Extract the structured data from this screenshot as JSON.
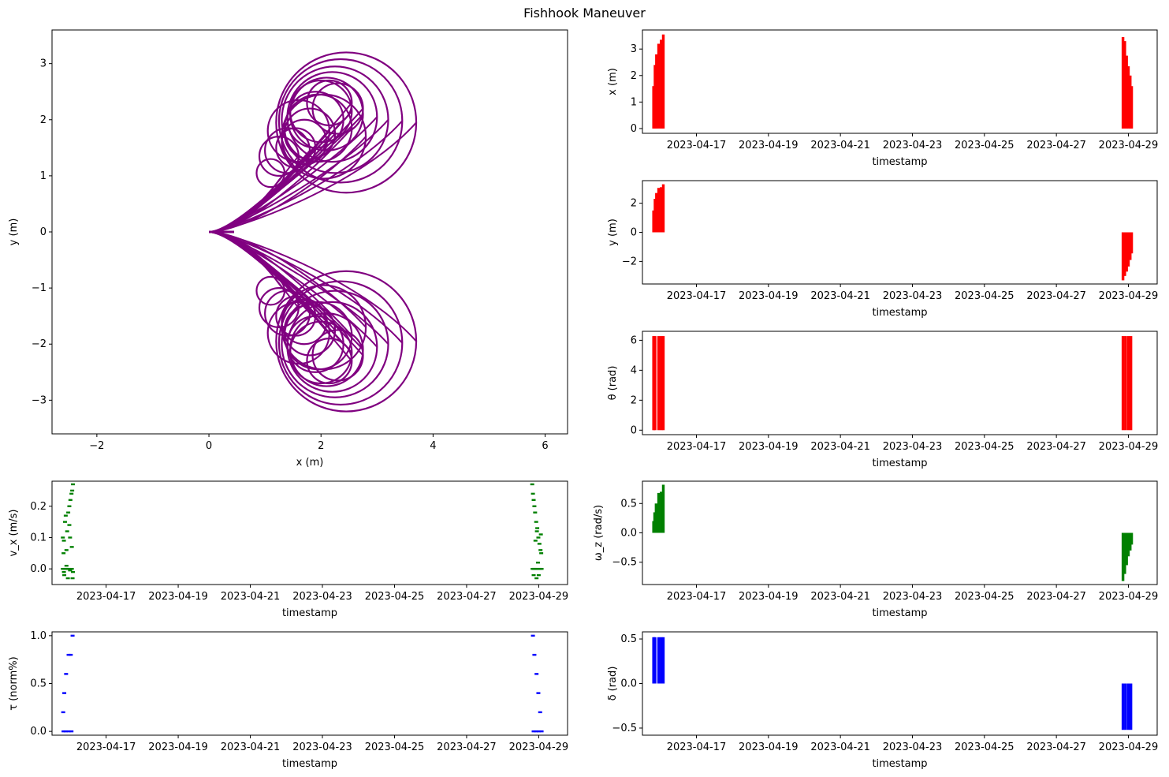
{
  "title": "Fishhook Maneuver",
  "colors": {
    "trajectory": "#800080",
    "pose": "#ff0000",
    "velocity": "#008000",
    "input": "#0000ff"
  },
  "date_ticks": [
    "2023-04-17",
    "2023-04-19",
    "2023-04-21",
    "2023-04-23",
    "2023-04-25",
    "2023-04-27",
    "2023-04-29"
  ],
  "chart_data": [
    {
      "id": "trajectory",
      "type": "line",
      "title": "",
      "xlabel": "x (m)",
      "ylabel": "y (m)",
      "xlim": [
        -2.8,
        6.4
      ],
      "ylim": [
        -3.6,
        3.6
      ],
      "xticks": [
        -2,
        0,
        2,
        4,
        6
      ],
      "xtick_labels": [
        "−2",
        "0",
        "2",
        "4",
        "6"
      ],
      "yticks": [
        -3,
        -2,
        -1,
        0,
        1,
        2,
        3
      ],
      "ytick_labels": [
        "−3",
        "−2",
        "−1",
        "0",
        "1",
        "2",
        "3"
      ],
      "color": "purple",
      "series": [
        {
          "name": "upper-loops",
          "loops": [
            {
              "cx": 2.25,
              "cy": 2.0,
              "r": 0.95
            },
            {
              "cx": 2.35,
              "cy": 1.98,
              "r": 1.1
            },
            {
              "cx": 2.45,
              "cy": 1.95,
              "r": 1.25
            },
            {
              "cx": 2.2,
              "cy": 2.05,
              "r": 0.8
            },
            {
              "cx": 2.1,
              "cy": 2.1,
              "r": 0.65
            },
            {
              "cx": 2.0,
              "cy": 2.15,
              "r": 0.55
            },
            {
              "cx": 1.9,
              "cy": 2.0,
              "r": 0.5
            },
            {
              "cx": 1.8,
              "cy": 1.75,
              "r": 0.45
            },
            {
              "cx": 1.7,
              "cy": 1.6,
              "r": 0.4
            },
            {
              "cx": 1.55,
              "cy": 1.5,
              "r": 0.35
            },
            {
              "cx": 1.4,
              "cy": 1.45,
              "r": 0.4
            },
            {
              "cx": 1.25,
              "cy": 1.35,
              "r": 0.35
            },
            {
              "cx": 1.1,
              "cy": 1.05,
              "r": 0.25
            },
            {
              "cx": 2.3,
              "cy": 2.2,
              "r": 0.45
            },
            {
              "cx": 2.15,
              "cy": 2.3,
              "r": 0.4
            },
            {
              "cx": 1.95,
              "cy": 1.85,
              "r": 0.6
            },
            {
              "cx": 1.6,
              "cy": 1.8,
              "r": 0.55
            },
            {
              "cx": 2.05,
              "cy": 1.7,
              "r": 0.75
            }
          ]
        },
        {
          "name": "lower-loops",
          "mirror_of": "upper-loops"
        }
      ]
    },
    {
      "id": "x",
      "type": "bar",
      "xlabel": "timestamp",
      "ylabel": "x (m)",
      "ylim": [
        -0.18,
        3.72
      ],
      "yticks": [
        0,
        1,
        2,
        3
      ],
      "ytick_labels": [
        "0",
        "1",
        "2",
        "3"
      ],
      "xlim_days": [
        15.5,
        29.8
      ],
      "color": "red",
      "bars": [
        {
          "day": 15.81,
          "value": 1.6
        },
        {
          "day": 15.85,
          "value": 2.4
        },
        {
          "day": 15.89,
          "value": 2.8
        },
        {
          "day": 15.95,
          "value": 3.2
        },
        {
          "day": 16.02,
          "value": 3.35
        },
        {
          "day": 16.08,
          "value": 3.55
        },
        {
          "day": 28.85,
          "value": 3.45
        },
        {
          "day": 28.9,
          "value": 3.3
        },
        {
          "day": 28.95,
          "value": 2.75
        },
        {
          "day": 29.0,
          "value": 2.35
        },
        {
          "day": 29.05,
          "value": 2.0
        },
        {
          "day": 29.09,
          "value": 1.6
        }
      ]
    },
    {
      "id": "y",
      "type": "bar",
      "xlabel": "timestamp",
      "ylabel": "y (m)",
      "ylim": [
        -3.55,
        3.55
      ],
      "yticks": [
        -2,
        0,
        2
      ],
      "ytick_labels": [
        "−2",
        "0",
        "2"
      ],
      "xlim_days": [
        15.5,
        29.8
      ],
      "color": "red",
      "bars": [
        {
          "day": 15.81,
          "value": 1.5
        },
        {
          "day": 15.85,
          "value": 2.3
        },
        {
          "day": 15.89,
          "value": 2.7
        },
        {
          "day": 15.95,
          "value": 3.05
        },
        {
          "day": 16.02,
          "value": 3.1
        },
        {
          "day": 16.08,
          "value": 3.3
        },
        {
          "day": 28.85,
          "value": -3.3
        },
        {
          "day": 28.9,
          "value": -3.0
        },
        {
          "day": 28.95,
          "value": -2.7
        },
        {
          "day": 29.0,
          "value": -2.35
        },
        {
          "day": 29.05,
          "value": -1.9
        },
        {
          "day": 29.09,
          "value": -1.45
        }
      ]
    },
    {
      "id": "theta",
      "type": "bar",
      "xlabel": "timestamp",
      "ylabel": "θ (rad)",
      "ylim": [
        -0.3,
        6.6
      ],
      "yticks": [
        0,
        2,
        4,
        6
      ],
      "ytick_labels": [
        "0",
        "2",
        "4",
        "6"
      ],
      "xlim_days": [
        15.5,
        29.8
      ],
      "color": "red",
      "bars": [
        {
          "day": 15.81,
          "value": 6.28
        },
        {
          "day": 15.85,
          "value": 6.28
        },
        {
          "day": 15.95,
          "value": 6.28
        },
        {
          "day": 16.02,
          "value": 6.28
        },
        {
          "day": 16.08,
          "value": 6.28
        },
        {
          "day": 28.85,
          "value": 6.28
        },
        {
          "day": 28.92,
          "value": 6.28
        },
        {
          "day": 29.0,
          "value": 6.28
        },
        {
          "day": 29.07,
          "value": 6.28
        }
      ]
    },
    {
      "id": "vx",
      "type": "scatter",
      "xlabel": "timestamp",
      "ylabel": "v_x (m/s)",
      "ylim": [
        -0.05,
        0.28
      ],
      "yticks": [
        0,
        0.1,
        0.2
      ],
      "ytick_labels": [
        "0.0",
        "0.1",
        "0.2"
      ],
      "xlim_days": [
        15.5,
        29.8
      ],
      "color": "green",
      "points": [
        {
          "day": 15.8,
          "value": 0.0
        },
        {
          "day": 15.83,
          "value": -0.01
        },
        {
          "day": 15.87,
          "value": 0.0
        },
        {
          "day": 15.92,
          "value": 0.0
        },
        {
          "day": 15.96,
          "value": 0.0
        },
        {
          "day": 16.0,
          "value": -0.005
        },
        {
          "day": 16.05,
          "value": 0.0
        },
        {
          "day": 16.08,
          "value": -0.01
        },
        {
          "day": 15.82,
          "value": 0.05
        },
        {
          "day": 15.8,
          "value": 0.1
        },
        {
          "day": 15.83,
          "value": 0.09
        },
        {
          "day": 15.86,
          "value": 0.15
        },
        {
          "day": 15.88,
          "value": 0.17
        },
        {
          "day": 15.92,
          "value": 0.12
        },
        {
          "day": 15.95,
          "value": 0.18
        },
        {
          "day": 15.98,
          "value": 0.2
        },
        {
          "day": 16.01,
          "value": 0.22
        },
        {
          "day": 16.04,
          "value": 0.24
        },
        {
          "day": 16.08,
          "value": 0.27
        },
        {
          "day": 16.06,
          "value": 0.25
        },
        {
          "day": 15.9,
          "value": 0.06
        },
        {
          "day": 16.0,
          "value": 0.1
        },
        {
          "day": 16.05,
          "value": 0.07
        },
        {
          "day": 15.98,
          "value": 0.14
        },
        {
          "day": 15.84,
          "value": -0.02
        },
        {
          "day": 15.94,
          "value": -0.03
        },
        {
          "day": 16.07,
          "value": -0.03
        },
        {
          "day": 15.9,
          "value": 0.01
        },
        {
          "day": 28.82,
          "value": 0.27
        },
        {
          "day": 28.84,
          "value": 0.24
        },
        {
          "day": 28.86,
          "value": 0.22
        },
        {
          "day": 28.88,
          "value": 0.2
        },
        {
          "day": 28.9,
          "value": 0.18
        },
        {
          "day": 28.93,
          "value": 0.15
        },
        {
          "day": 28.96,
          "value": 0.13
        },
        {
          "day": 28.99,
          "value": 0.1
        },
        {
          "day": 29.02,
          "value": 0.08
        },
        {
          "day": 29.05,
          "value": 0.06
        },
        {
          "day": 29.07,
          "value": 0.05
        },
        {
          "day": 28.95,
          "value": 0.12
        },
        {
          "day": 28.83,
          "value": 0.0
        },
        {
          "day": 28.87,
          "value": 0.0
        },
        {
          "day": 28.92,
          "value": 0.0
        },
        {
          "day": 28.97,
          "value": 0.0
        },
        {
          "day": 29.03,
          "value": 0.0
        },
        {
          "day": 29.08,
          "value": 0.0
        },
        {
          "day": 28.86,
          "value": -0.02
        },
        {
          "day": 28.94,
          "value": -0.03
        },
        {
          "day": 29.0,
          "value": -0.02
        },
        {
          "day": 28.91,
          "value": 0.09
        },
        {
          "day": 29.06,
          "value": 0.11
        },
        {
          "day": 28.98,
          "value": 0.02
        }
      ]
    },
    {
      "id": "wz",
      "type": "bar",
      "xlabel": "timestamp",
      "ylabel": "ω_z (rad/s)",
      "ylim": [
        -0.88,
        0.88
      ],
      "yticks": [
        -0.5,
        0,
        0.5
      ],
      "ytick_labels": [
        "−0.5",
        "0.0",
        "0.5"
      ],
      "xlim_days": [
        15.5,
        29.8
      ],
      "color": "green",
      "bars": [
        {
          "day": 15.81,
          "value": 0.2
        },
        {
          "day": 15.84,
          "value": 0.35
        },
        {
          "day": 15.88,
          "value": 0.5
        },
        {
          "day": 15.95,
          "value": 0.68
        },
        {
          "day": 16.02,
          "value": 0.7
        },
        {
          "day": 16.08,
          "value": 0.82
        },
        {
          "day": 28.85,
          "value": -0.82
        },
        {
          "day": 28.9,
          "value": -0.7
        },
        {
          "day": 28.95,
          "value": -0.55
        },
        {
          "day": 29.0,
          "value": -0.4
        },
        {
          "day": 29.05,
          "value": -0.3
        },
        {
          "day": 29.09,
          "value": -0.2
        }
      ]
    },
    {
      "id": "tau",
      "type": "scatter",
      "xlabel": "timestamp",
      "ylabel": "τ (norm%)",
      "ylim": [
        -0.04,
        1.04
      ],
      "yticks": [
        0,
        0.5,
        1
      ],
      "ytick_labels": [
        "0.0",
        "0.5",
        "1.0"
      ],
      "xlim_days": [
        15.5,
        29.8
      ],
      "color": "blue",
      "points": [
        {
          "day": 15.81,
          "value": 0.2
        },
        {
          "day": 15.84,
          "value": 0.4
        },
        {
          "day": 15.89,
          "value": 0.6
        },
        {
          "day": 15.96,
          "value": 0.8
        },
        {
          "day": 16.02,
          "value": 0.8
        },
        {
          "day": 16.07,
          "value": 1.0
        },
        {
          "day": 15.82,
          "value": 0.0
        },
        {
          "day": 15.88,
          "value": 0.0
        },
        {
          "day": 15.96,
          "value": 0.0
        },
        {
          "day": 16.04,
          "value": 0.0
        },
        {
          "day": 28.84,
          "value": 1.0
        },
        {
          "day": 28.88,
          "value": 0.8
        },
        {
          "day": 28.94,
          "value": 0.6
        },
        {
          "day": 28.99,
          "value": 0.4
        },
        {
          "day": 29.04,
          "value": 0.2
        },
        {
          "day": 29.08,
          "value": 0.0
        },
        {
          "day": 28.86,
          "value": 0.0
        },
        {
          "day": 28.93,
          "value": 0.0
        },
        {
          "day": 29.0,
          "value": 0.0
        }
      ]
    },
    {
      "id": "delta",
      "type": "bar",
      "xlabel": "timestamp",
      "ylabel": "δ (rad)",
      "ylim": [
        -0.58,
        0.58
      ],
      "yticks": [
        -0.5,
        0,
        0.5
      ],
      "ytick_labels": [
        "−0.5",
        "0.0",
        "0.5"
      ],
      "xlim_days": [
        15.5,
        29.8
      ],
      "color": "blue",
      "bars": [
        {
          "day": 15.81,
          "value": 0.52
        },
        {
          "day": 15.85,
          "value": 0.52
        },
        {
          "day": 15.95,
          "value": 0.52
        },
        {
          "day": 16.02,
          "value": 0.52
        },
        {
          "day": 16.08,
          "value": 0.52
        },
        {
          "day": 28.85,
          "value": -0.52
        },
        {
          "day": 28.92,
          "value": -0.52
        },
        {
          "day": 29.0,
          "value": -0.52
        },
        {
          "day": 29.07,
          "value": -0.52
        }
      ]
    }
  ]
}
